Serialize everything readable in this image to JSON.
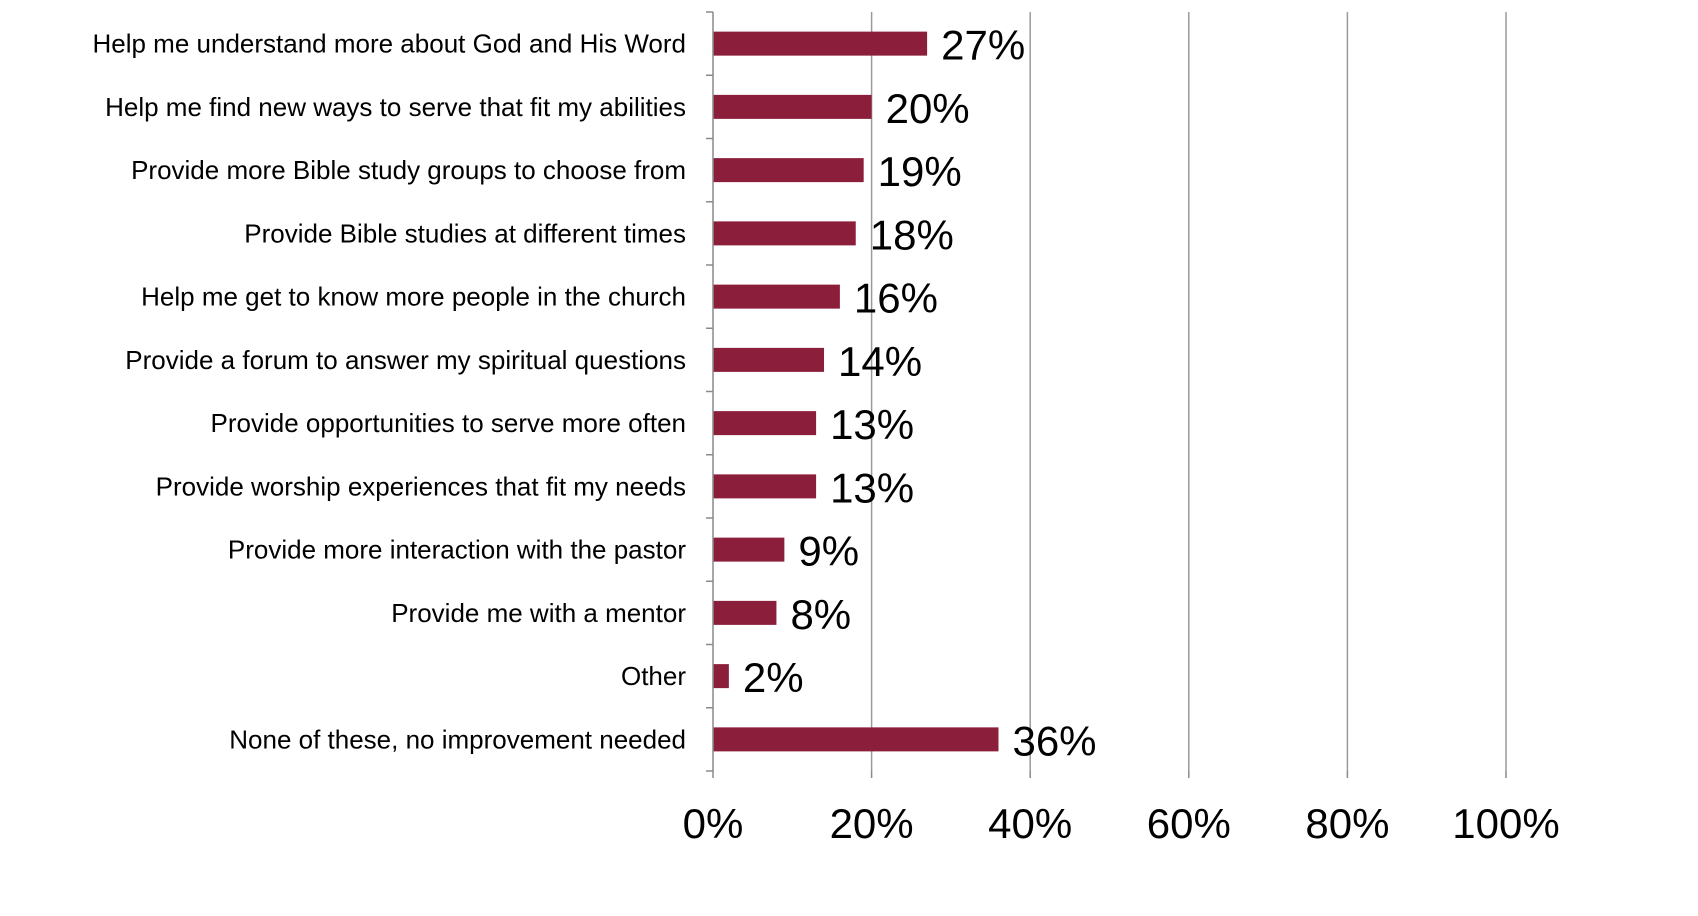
{
  "chart_data": {
    "type": "bar",
    "orientation": "horizontal",
    "categories": [
      "Help me understand more about God and His Word",
      "Help me find new ways to serve that fit my abilities",
      "Provide more Bible study groups to choose from",
      "Provide Bible studies at different times",
      "Help me get to know more people in the church",
      "Provide a forum to answer my spiritual questions",
      "Provide opportunities to serve more often",
      "Provide worship experiences that fit my needs",
      "Provide more interaction with the pastor",
      "Provide me with a mentor",
      "Other",
      "None of these, no improvement needed"
    ],
    "values": [
      27,
      20,
      19,
      18,
      16,
      14,
      13,
      13,
      9,
      8,
      2,
      36
    ],
    "data_labels": [
      "27%",
      "20%",
      "19%",
      "18%",
      "16%",
      "14%",
      "13%",
      "13%",
      "9%",
      "8%",
      "2%",
      "36%"
    ],
    "x_ticks": [
      0,
      20,
      40,
      60,
      80,
      100
    ],
    "x_tick_labels": [
      "0%",
      "20%",
      "40%",
      "60%",
      "80%",
      "100%"
    ],
    "xlim": [
      0,
      100
    ],
    "grid": "vertical",
    "legend": "none",
    "bar_color": "#8B1E3A",
    "grid_color": "#9a9a9a",
    "title": "",
    "xlabel": "",
    "ylabel": ""
  }
}
